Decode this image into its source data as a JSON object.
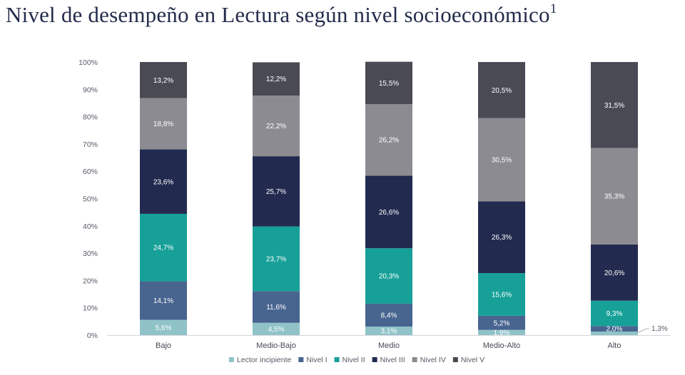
{
  "title": "Nivel de desempeño en Lectura según nivel socioeconómico",
  "title_sup": "1",
  "colors": {
    "lector_incipiente": "#8fc3c8",
    "nivel_i": "#47658f",
    "nivel_ii": "#17a098",
    "nivel_iii": "#232a4f",
    "nivel_iv": "#8c8b91",
    "nivel_v": "#4a4a55"
  },
  "chart_data": {
    "type": "bar",
    "stacked": true,
    "xlabel": "",
    "ylabel": "",
    "ylim": [
      0,
      100
    ],
    "y_ticks": [
      "0%",
      "10%",
      "20%",
      "30%",
      "40%",
      "50%",
      "60%",
      "70%",
      "80%",
      "90%",
      "100%"
    ],
    "categories": [
      "Bajo",
      "Medio-Bajo",
      "Medio",
      "Medio-Alto",
      "Alto"
    ],
    "series": [
      {
        "name": "Lector incipiente",
        "color_key": "lector_incipiente",
        "values": [
          5.6,
          4.5,
          3.1,
          1.9,
          1.3
        ],
        "labels": [
          "5,6%",
          "4,5%",
          "3,1%",
          "1,9%",
          "1,3%"
        ]
      },
      {
        "name": "Nivel I",
        "color_key": "nivel_i",
        "values": [
          14.1,
          11.6,
          8.4,
          5.2,
          2.0
        ],
        "labels": [
          "14,1%",
          "11,6%",
          "8,4%",
          "5,2%",
          "2,0%"
        ]
      },
      {
        "name": "Nivel II",
        "color_key": "nivel_ii",
        "values": [
          24.7,
          23.7,
          20.3,
          15.6,
          9.3
        ],
        "labels": [
          "24,7%",
          "23,7%",
          "20,3%",
          "15,6%",
          "9,3%"
        ]
      },
      {
        "name": "Nivel III",
        "color_key": "nivel_iii",
        "values": [
          23.6,
          25.7,
          26.6,
          26.3,
          20.6
        ],
        "labels": [
          "23,6%",
          "25,7%",
          "26,6%",
          "26,3%",
          "20,6%"
        ]
      },
      {
        "name": "Nivel IV",
        "color_key": "nivel_iv",
        "values": [
          18.8,
          22.2,
          26.2,
          30.5,
          35.3
        ],
        "labels": [
          "18,8%",
          "22,2%",
          "26,2%",
          "30,5%",
          "35,3%"
        ]
      },
      {
        "name": "Nivel V",
        "color_key": "nivel_v",
        "values": [
          13.2,
          12.2,
          15.5,
          20.5,
          31.5
        ],
        "labels": [
          "13,2%",
          "12,2%",
          "15,5%",
          "20,5%",
          "31,5%"
        ]
      }
    ],
    "callout": {
      "category": "Alto",
      "series": "Lector incipiente",
      "label": "1,3%"
    },
    "legend_position": "bottom",
    "grid": false
  }
}
